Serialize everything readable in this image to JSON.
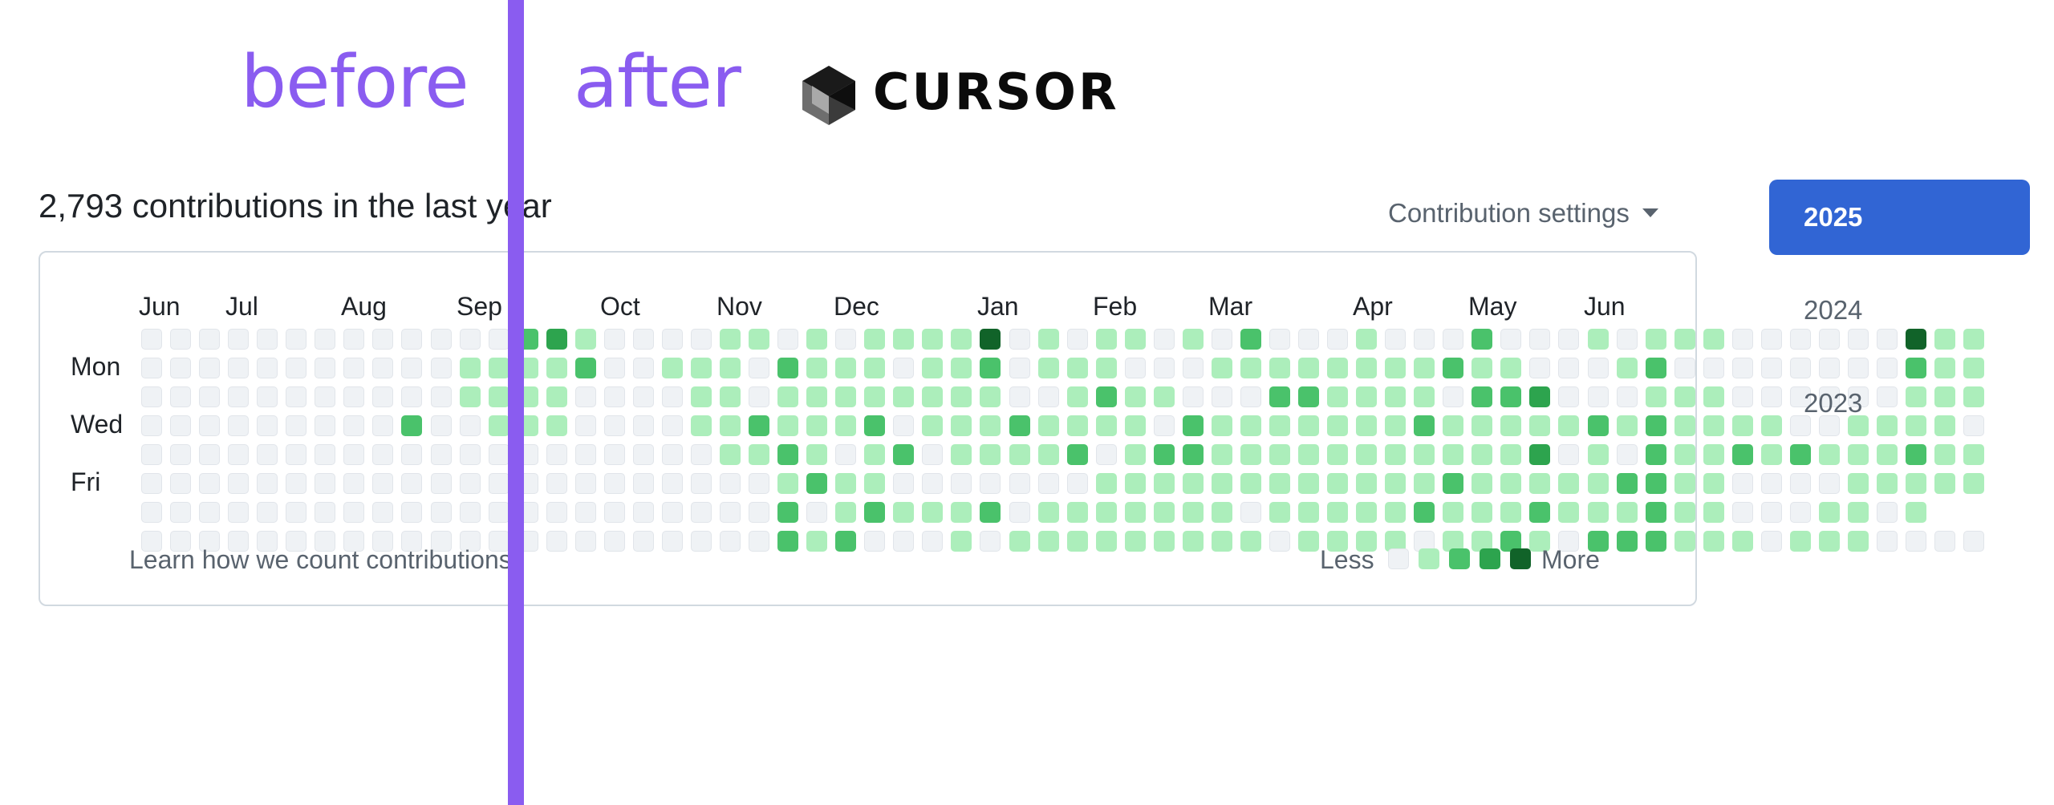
{
  "header": {
    "before": "before",
    "after": "after",
    "brand": "CURSOR",
    "logo_icon": "cursor-cube-logo-icon"
  },
  "contributions": {
    "title": "2,793 contributions in the last year",
    "settings_label": "Contribution settings",
    "months": [
      "Jun",
      "Jul",
      "Aug",
      "Sep",
      "Oct",
      "Nov",
      "Dec",
      "Jan",
      "Feb",
      "Mar",
      "Apr",
      "May",
      "Jun"
    ],
    "days": [
      "Mon",
      "Wed",
      "Fri"
    ],
    "learn_link": "Learn how we count contributions",
    "legend": {
      "less": "Less",
      "more": "More"
    },
    "grid": [
      "0000000000000231000011010111140101101020001000200010111000000411",
      "0000000000011112001110211101120111000111111112110001200000000211",
      "0000000000011110000110111111110012110002211110223000111000000111",
      "0000000002001110000112111201112111102111111121111121211110011110",
      "0000000000000000000011210120111120122111111111113010211212111211",
      "0000000000000000000000121100000001111111111112111112211000011111",
      "00000000000000000000002012111201111111011111211121112110001101",
      "0000000000000000000000212000101111111110111101121022211101110000"
    ],
    "colors": {
      "level0": "#eff2f5",
      "level1": "#aceebb",
      "level2": "#4ac26b",
      "level3": "#2da44e",
      "level4": "#116329"
    }
  },
  "years": [
    "2025",
    "2024",
    "2023"
  ],
  "accent": "#8a5cf0",
  "selected_year_color": "#3165d4"
}
